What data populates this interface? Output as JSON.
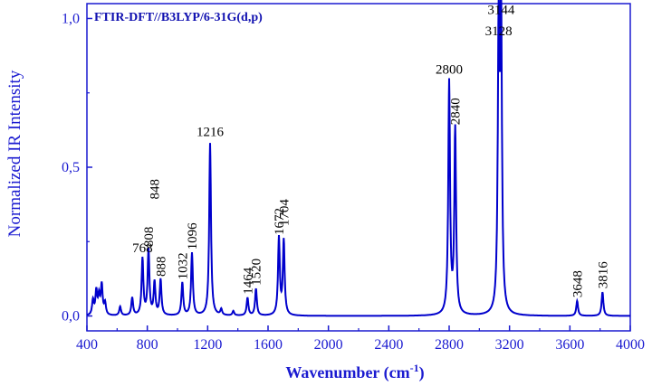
{
  "chart_data": {
    "type": "line",
    "annotation": "FTIR-DFT//B3LYP/6-31G(d,p)",
    "xlabel": "Wavenumber (cm",
    "xlabel_sup": "-1",
    "xlabel_close": ")",
    "ylabel": "Normalized IR Intensity",
    "xlim": [
      400,
      4000
    ],
    "ylim": [
      -0.05,
      1.05
    ],
    "x_ticks": [
      400,
      800,
      1200,
      1600,
      2000,
      2400,
      2800,
      3200,
      3600,
      4000
    ],
    "x_tick_labels": [
      "400",
      "800",
      "1200",
      "1600",
      "2000",
      "2400",
      "2800",
      "3200",
      "3600",
      "4000"
    ],
    "y_ticks": [
      0.0,
      0.5,
      1.0
    ],
    "y_tick_labels": [
      "0,0",
      "0,5",
      "1,0"
    ],
    "line_color": "#0000cc",
    "peaks": [
      {
        "x": 440,
        "y": 0.05
      },
      {
        "x": 462,
        "y": 0.08
      },
      {
        "x": 480,
        "y": 0.06
      },
      {
        "x": 498,
        "y": 0.1
      },
      {
        "x": 520,
        "y": 0.04
      },
      {
        "x": 620,
        "y": 0.03
      },
      {
        "x": 700,
        "y": 0.06
      },
      {
        "x": 768,
        "y": 0.19
      },
      {
        "x": 808,
        "y": 0.22
      },
      {
        "x": 848,
        "y": 0.11
      },
      {
        "x": 888,
        "y": 0.12
      },
      {
        "x": 1032,
        "y": 0.11
      },
      {
        "x": 1096,
        "y": 0.21
      },
      {
        "x": 1216,
        "y": 0.58
      },
      {
        "x": 1290,
        "y": 0.02
      },
      {
        "x": 1370,
        "y": 0.015
      },
      {
        "x": 1464,
        "y": 0.06
      },
      {
        "x": 1520,
        "y": 0.09
      },
      {
        "x": 1672,
        "y": 0.26
      },
      {
        "x": 1704,
        "y": 0.25
      },
      {
        "x": 2800,
        "y": 0.78
      },
      {
        "x": 2840,
        "y": 0.62
      },
      {
        "x": 3128,
        "y": 0.92
      },
      {
        "x": 3144,
        "y": 0.97
      },
      {
        "x": 3648,
        "y": 0.05
      },
      {
        "x": 3816,
        "y": 0.08
      }
    ],
    "peak_labels": [
      {
        "text": "768",
        "x": 768,
        "y": 0.19,
        "rotate": false
      },
      {
        "text": "808",
        "x": 808,
        "y": 0.22,
        "rotate": true
      },
      {
        "text": "848",
        "x": 848,
        "y": 0.38,
        "rotate": true
      },
      {
        "text": "888",
        "x": 888,
        "y": 0.12,
        "rotate": true
      },
      {
        "text": "1032",
        "x": 1032,
        "y": 0.11,
        "rotate": true
      },
      {
        "text": "1096",
        "x": 1096,
        "y": 0.21,
        "rotate": true
      },
      {
        "text": "1216",
        "x": 1216,
        "y": 0.58,
        "rotate": false
      },
      {
        "text": "1464",
        "x": 1464,
        "y": 0.06,
        "rotate": true
      },
      {
        "text": "1520",
        "x": 1520,
        "y": 0.09,
        "rotate": true
      },
      {
        "text": "1672",
        "x": 1672,
        "y": 0.26,
        "rotate": true
      },
      {
        "text": "1704",
        "x": 1704,
        "y": 0.29,
        "rotate": true
      },
      {
        "text": "2800",
        "x": 2800,
        "y": 0.79,
        "rotate": false
      },
      {
        "text": "2840",
        "x": 2840,
        "y": 0.63,
        "rotate": true
      },
      {
        "text": "3128",
        "x": 3128,
        "y": 0.92,
        "rotate": false
      },
      {
        "text": "3144",
        "x": 3144,
        "y": 0.99,
        "rotate": false
      },
      {
        "text": "3648",
        "x": 3648,
        "y": 0.05,
        "rotate": true
      },
      {
        "text": "3816",
        "x": 3816,
        "y": 0.08,
        "rotate": true
      }
    ]
  }
}
